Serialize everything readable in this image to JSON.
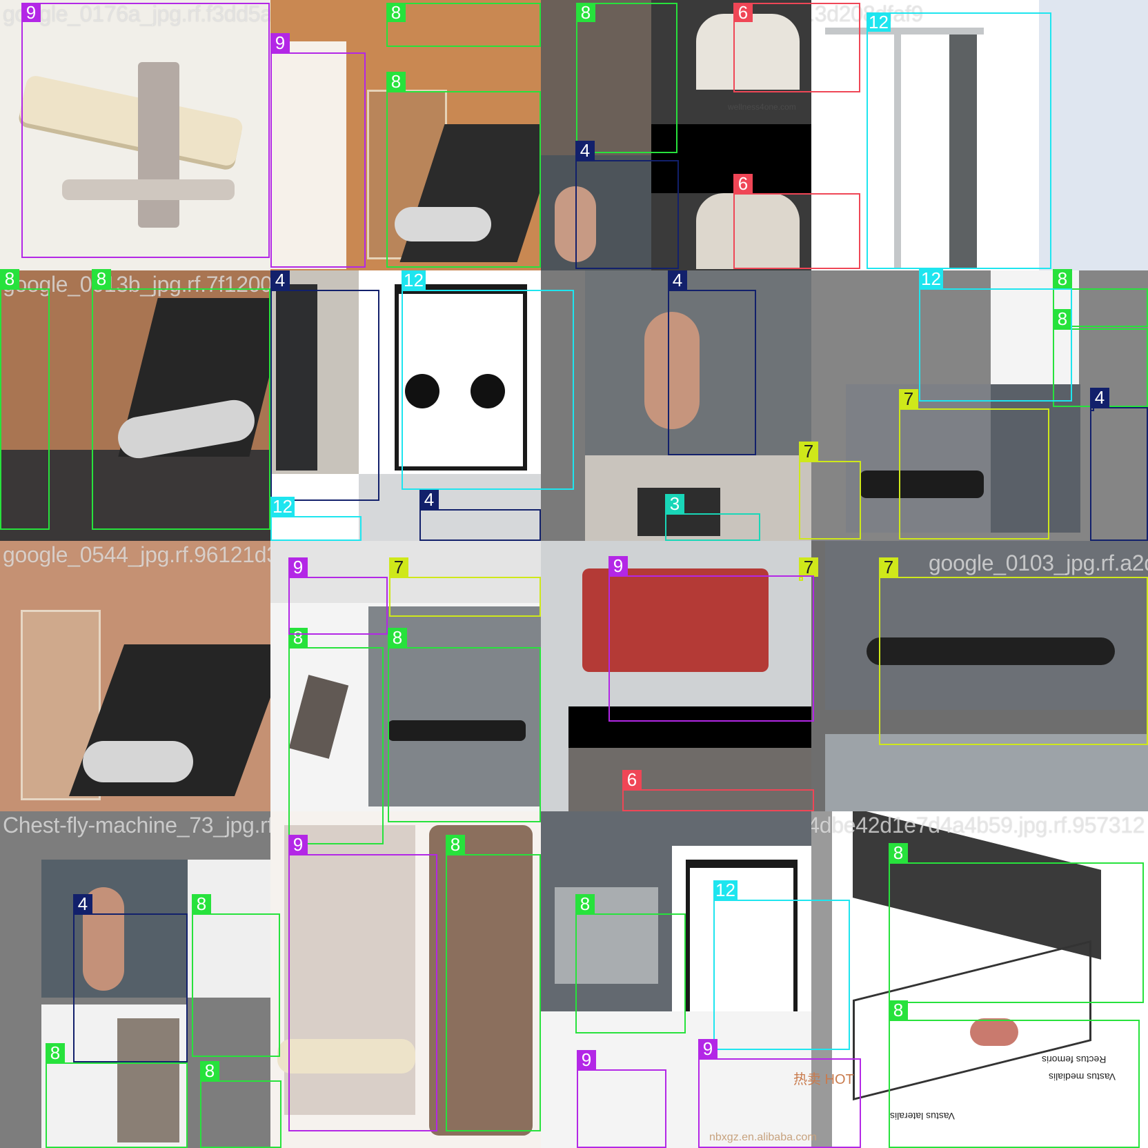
{
  "mosaic": {
    "tiles": [
      {
        "id": "t1",
        "filename": "google_0176a_jpg.rf.f3dd5a0f1405e75b22cdd7fb8139e6563f93646"
      },
      {
        "id": "t2",
        "filename": "e7_jpg.rf.ea6af17cfa0f15e20_jpg.rf.3d208dfaf9"
      },
      {
        "id": "t3",
        "filename": "google_0013b_jpg.rf.7f1200fbafee700d7c54f6c.rf.09f5e2c63e8489b70e210b434242c8fa5d37e09b"
      },
      {
        "id": "t4",
        "filename": "google_0544_jpg.rf.96121d3c7f09260372b8f3.rf.146d14e9aeb07586e7f17d0d4e602c5d72fe9208"
      },
      {
        "id": "t5",
        "filename": "google_0103_jpg.rf.a2d87c1"
      },
      {
        "id": "t6",
        "filename": "Chest-fly-machine_73_jpg.rf.21a24ab1f5c3ef1482e214520d3c14593c32e"
      },
      {
        "id": "t7",
        "filename": "leg-press_62_jpg.rf.6872d4dbe42d1e7d4a4b59.jpg.rf.957312"
      }
    ],
    "class_colors": {
      "3": "#19d6b8",
      "4": "#12206b",
      "6": "#ef4656",
      "7": "#cfe81a",
      "8": "#27e23c",
      "9": "#b327e6",
      "12": "#1ee5ef"
    },
    "boxes": [
      {
        "label": "9"
      },
      {
        "label": "9"
      },
      {
        "label": "8"
      },
      {
        "label": "8"
      },
      {
        "label": "8"
      },
      {
        "label": "6"
      },
      {
        "label": "12"
      },
      {
        "label": "4"
      },
      {
        "label": "6"
      },
      {
        "label": "4"
      },
      {
        "label": "8"
      },
      {
        "label": "8"
      },
      {
        "label": "12"
      },
      {
        "label": "12"
      },
      {
        "label": "4"
      },
      {
        "label": "4"
      },
      {
        "label": "8"
      },
      {
        "label": "8"
      },
      {
        "label": "7"
      },
      {
        "label": "4"
      },
      {
        "label": "7"
      },
      {
        "label": "3"
      },
      {
        "label": "12"
      },
      {
        "label": "4"
      },
      {
        "label": "8"
      },
      {
        "label": "9"
      },
      {
        "label": "7"
      },
      {
        "label": "8"
      },
      {
        "label": "7"
      },
      {
        "label": "9"
      },
      {
        "label": "6"
      },
      {
        "label": "7"
      },
      {
        "label": "9"
      },
      {
        "label": "8"
      },
      {
        "label": "4"
      },
      {
        "label": "8"
      },
      {
        "label": "8"
      },
      {
        "label": "8"
      },
      {
        "label": "8"
      },
      {
        "label": "12"
      },
      {
        "label": "9"
      },
      {
        "label": "9"
      },
      {
        "label": "8"
      },
      {
        "label": "8"
      }
    ],
    "annotations": {
      "watermark_1": "热卖 HOT",
      "watermark_2": "nbxgz.en.alibaba.com",
      "logo_text": "wellness4one.com",
      "muscle_labels": [
        "Rectus femoris",
        "Vastus medialis",
        "Vastus lateralis"
      ]
    }
  }
}
